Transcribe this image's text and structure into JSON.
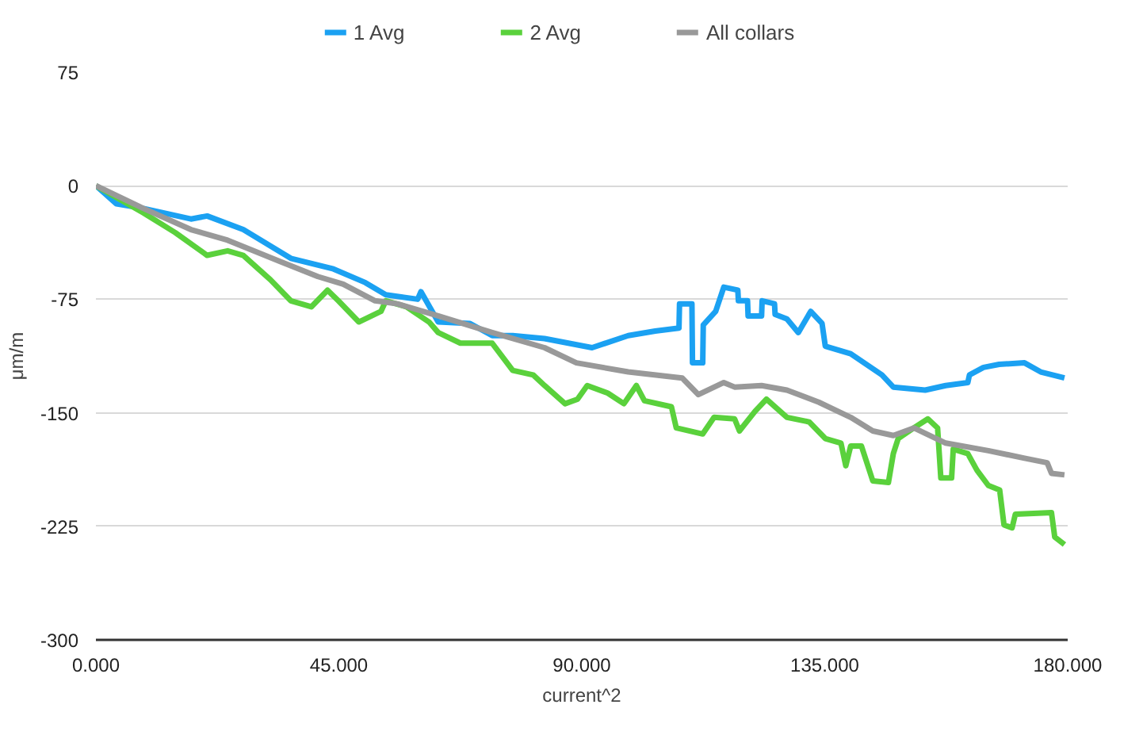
{
  "chart_data": {
    "type": "line",
    "xlabel": "current^2",
    "ylabel": "μm/m",
    "xlim": [
      0,
      180
    ],
    "ylim": [
      -300,
      75
    ],
    "xticks": [
      {
        "value": 0,
        "label": "0.000"
      },
      {
        "value": 45,
        "label": "45.000"
      },
      {
        "value": 90,
        "label": "90.000"
      },
      {
        "value": 135,
        "label": "135.000"
      },
      {
        "value": 180,
        "label": "180.000"
      }
    ],
    "yticks": [
      -300,
      -225,
      -150,
      -75,
      0,
      75
    ],
    "grid": "y",
    "legend": "top",
    "marker": "none",
    "line_style": "solid",
    "series": [
      {
        "name": "1 Avg",
        "color": "#1ba1f2",
        "x": [
          0,
          3.8,
          8.8,
          17.6,
          20.6,
          27.3,
          36.1,
          44.0,
          49.9,
          53.7,
          59.6,
          60.2,
          63.4,
          69.3,
          73.4,
          77.2,
          83.1,
          91.9,
          98.6,
          103.6,
          108.0,
          108.1,
          110.4,
          110.5,
          112.4,
          112.5,
          114.8,
          116.3,
          118.9,
          119.0,
          120.7,
          120.8,
          123.3,
          123.4,
          125.7,
          125.8,
          128.0,
          130.1,
          132.4,
          134.5,
          135.1,
          139.8,
          145.6,
          147.7,
          153.6,
          157.4,
          161.5,
          161.8,
          164.4,
          167.3,
          172.0,
          175.0,
          179.4
        ],
        "values": [
          0,
          -12,
          -15,
          -22,
          -20,
          -29,
          -48,
          -55,
          -64,
          -72,
          -75,
          -70,
          -90,
          -91,
          -99,
          -99,
          -101,
          -107,
          -99,
          -96,
          -94,
          -78,
          -78,
          -117,
          -117,
          -92,
          -83,
          -67,
          -69,
          -76,
          -76,
          -86,
          -86,
          -76,
          -78,
          -85,
          -88,
          -97,
          -83,
          -91,
          -106,
          -111,
          -125,
          -133,
          -135,
          -132,
          -130,
          -125,
          -120,
          -118,
          -117,
          -123,
          -127
        ]
      },
      {
        "name": "2 Avg",
        "color": "#5ad13c",
        "x": [
          0,
          8.8,
          14.7,
          20.6,
          24.4,
          27.3,
          32.3,
          36.1,
          39.9,
          42.9,
          44.9,
          48.7,
          52.8,
          53.7,
          57.5,
          61.7,
          63.4,
          67.5,
          73.4,
          77.2,
          81.0,
          83.1,
          86.9,
          89.2,
          91.0,
          94.8,
          97.8,
          100.1,
          101.6,
          106.6,
          107.5,
          112.4,
          114.5,
          118.3,
          119.2,
          122.1,
          124.2,
          128.0,
          132.1,
          135.1,
          138.0,
          138.9,
          139.8,
          141.8,
          143.9,
          146.8,
          147.7,
          148.6,
          151.5,
          154.1,
          155.9,
          156.5,
          158.5,
          158.8,
          161.5,
          163.2,
          165.3,
          167.4,
          168.2,
          169.7,
          170.3,
          177.0,
          177.6,
          179.4
        ],
        "values": [
          0,
          -18,
          -31,
          -46,
          -43,
          -46,
          -62,
          -76,
          -80,
          -69,
          -76,
          -90,
          -83,
          -76,
          -80,
          -90,
          -97,
          -104,
          -104,
          -122,
          -125,
          -132,
          -144,
          -141,
          -132,
          -137,
          -144,
          -132,
          -142,
          -146,
          -160,
          -164,
          -153,
          -154,
          -162,
          -149,
          -141,
          -153,
          -156,
          -167,
          -170,
          -185,
          -172,
          -172,
          -195,
          -196,
          -177,
          -167,
          -160,
          -154,
          -160,
          -193,
          -193,
          -174,
          -177,
          -188,
          -198,
          -201,
          -224,
          -226,
          -217,
          -216,
          -232,
          -237
        ]
      },
      {
        "name": "All collars",
        "color": "#999999",
        "x": [
          0,
          8.8,
          17.6,
          24.4,
          34.1,
          41.1,
          45.8,
          51.7,
          55.8,
          63.4,
          73.4,
          83.1,
          89.0,
          98.6,
          108.6,
          111.6,
          116.3,
          118.3,
          123.3,
          128.0,
          133.9,
          139.8,
          143.9,
          147.7,
          151.5,
          157.4,
          165.3,
          172.0,
          176.2,
          177.0,
          179.4
        ],
        "values": [
          0,
          -15,
          -29,
          -36,
          -50,
          -60,
          -65,
          -76,
          -78,
          -86,
          -97,
          -107,
          -117,
          -123,
          -127,
          -138,
          -130,
          -133,
          -132,
          -135,
          -143,
          -153,
          -162,
          -165,
          -160,
          -170,
          -175,
          -180,
          -183,
          -190,
          -191
        ]
      }
    ]
  }
}
